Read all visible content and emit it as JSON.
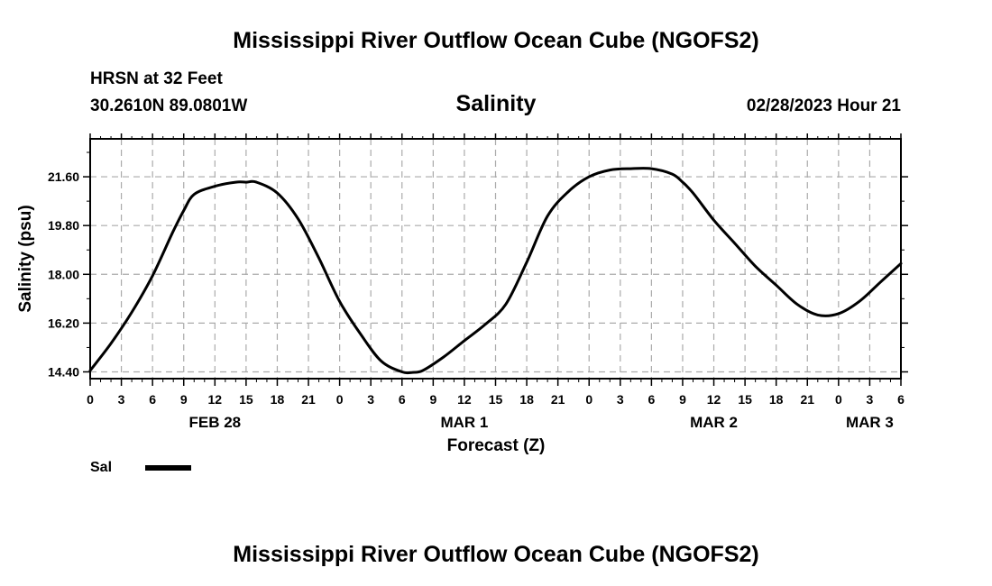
{
  "header": {
    "title": "Mississippi River Outflow Ocean Cube (NGOFS2)",
    "station": "HRSN at 32 Feet",
    "coords": "30.2610N  89.0801W",
    "plot_title": "Salinity",
    "datetime": "02/28/2023 Hour 21"
  },
  "legend": {
    "label": "Sal"
  },
  "footer": {
    "title": "Mississippi River Outflow Ocean Cube (NGOFS2)"
  },
  "chart_data": {
    "type": "line",
    "title": "Salinity",
    "xlabel": "Forecast (Z)",
    "ylabel": "Salinity (psu)",
    "xlim": [
      0,
      78
    ],
    "ylim": [
      14.15,
      23.0
    ],
    "x_ticks": [
      0,
      3,
      6,
      9,
      12,
      15,
      18,
      21,
      24,
      27,
      30,
      33,
      36,
      39,
      42,
      45,
      48,
      51,
      54,
      57,
      60,
      63,
      66,
      69,
      72,
      75,
      78
    ],
    "x_tick_labels": [
      "0",
      "3",
      "6",
      "9",
      "12",
      "15",
      "18",
      "21",
      "0",
      "3",
      "6",
      "9",
      "12",
      "15",
      "18",
      "21",
      "0",
      "3",
      "6",
      "9",
      "12",
      "15",
      "18",
      "21",
      "0",
      "3",
      "6"
    ],
    "day_labels": [
      {
        "label": "FEB 28",
        "x": 12
      },
      {
        "label": "MAR 1",
        "x": 36
      },
      {
        "label": "MAR 2",
        "x": 60
      },
      {
        "label": "MAR 3",
        "x": 75
      }
    ],
    "y_ticks": [
      14.4,
      16.2,
      18.0,
      19.8,
      21.6
    ],
    "y_tick_labels": [
      "14.40",
      "16.20",
      "18.00",
      "19.80",
      "21.60"
    ],
    "grid": true,
    "series": [
      {
        "name": "Sal",
        "x": [
          0,
          2,
          4,
          6,
          8,
          9,
          10,
          12,
          14,
          15,
          16,
          18,
          20,
          22,
          24,
          26,
          28,
          30,
          31,
          32,
          34,
          36,
          38,
          40,
          42,
          44,
          46,
          48,
          50,
          52,
          54,
          56,
          57,
          58,
          60,
          62,
          64,
          66,
          68,
          70,
          72,
          74,
          76,
          78
        ],
        "values": [
          14.45,
          15.45,
          16.6,
          17.95,
          19.6,
          20.35,
          20.95,
          21.25,
          21.4,
          21.4,
          21.4,
          21.0,
          20.05,
          18.6,
          17.0,
          15.8,
          14.8,
          14.4,
          14.38,
          14.45,
          14.95,
          15.55,
          16.15,
          16.9,
          18.45,
          20.15,
          21.05,
          21.6,
          21.85,
          21.9,
          21.9,
          21.7,
          21.4,
          21.0,
          20.0,
          19.15,
          18.3,
          17.6,
          16.9,
          16.5,
          16.55,
          17.0,
          17.7,
          18.4
        ]
      }
    ]
  }
}
